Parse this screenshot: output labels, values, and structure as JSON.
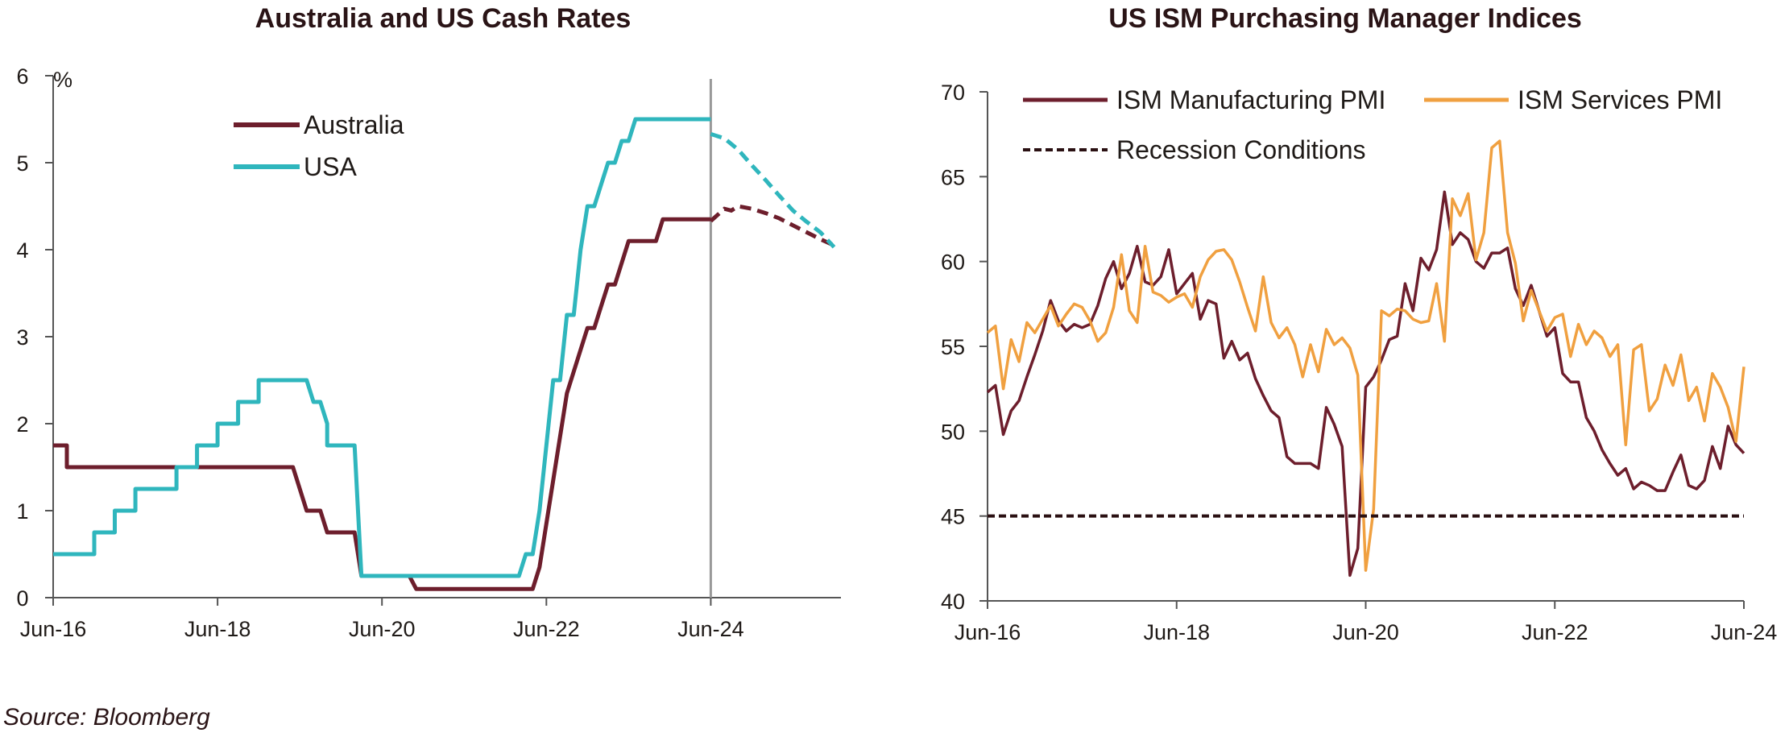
{
  "source": "Source: Bloomberg",
  "colors": {
    "maroon": "#6d1e2c",
    "teal": "#2fb6bd",
    "orange": "#f0a040",
    "dash": "#2a1012",
    "axis": "#555555"
  },
  "chart_data": [
    {
      "type": "line",
      "title": "Australia and US Cash Rates",
      "ylabel": "%",
      "xlabel": "",
      "ylim": [
        0,
        6
      ],
      "yticks": [
        "0",
        "1",
        "2",
        "3",
        "4",
        "5",
        "6"
      ],
      "x_tick_labels": [
        "Jun-16",
        "Jun-18",
        "Jun-20",
        "Jun-22",
        "Jun-24"
      ],
      "x_tick_dates": [
        "2016-06",
        "2018-06",
        "2020-06",
        "2022-06",
        "2024-06"
      ],
      "xlim": [
        "2016-06",
        "2026-01"
      ],
      "vertical_line_at": "2024-06",
      "series": [
        {
          "name": "Australia",
          "color": "#6d1e2c",
          "points": [
            [
              "2016-06",
              1.75
            ],
            [
              "2016-08",
              1.75
            ],
            [
              "2016-08",
              1.5
            ],
            [
              "2019-05",
              1.5
            ],
            [
              "2019-06",
              1.25
            ],
            [
              "2019-07",
              1.0
            ],
            [
              "2019-09",
              1.0
            ],
            [
              "2019-10",
              0.75
            ],
            [
              "2020-02",
              0.75
            ],
            [
              "2020-03",
              0.25
            ],
            [
              "2020-10",
              0.25
            ],
            [
              "2020-11",
              0.1
            ],
            [
              "2022-04",
              0.1
            ],
            [
              "2022-05",
              0.35
            ],
            [
              "2022-06",
              0.85
            ],
            [
              "2022-07",
              1.35
            ],
            [
              "2022-08",
              1.85
            ],
            [
              "2022-09",
              2.35
            ],
            [
              "2022-10",
              2.6
            ],
            [
              "2022-11",
              2.85
            ],
            [
              "2022-12",
              3.1
            ],
            [
              "2023-01",
              3.1
            ],
            [
              "2023-02",
              3.35
            ],
            [
              "2023-03",
              3.6
            ],
            [
              "2023-04",
              3.6
            ],
            [
              "2023-05",
              3.85
            ],
            [
              "2023-06",
              4.1
            ],
            [
              "2023-10",
              4.1
            ],
            [
              "2023-11",
              4.35
            ],
            [
              "2024-06",
              4.35
            ]
          ],
          "forecast": [
            [
              "2024-06",
              4.33
            ],
            [
              "2024-07",
              4.4
            ],
            [
              "2024-08",
              4.47
            ],
            [
              "2024-09",
              4.45
            ],
            [
              "2024-10",
              4.5
            ],
            [
              "2024-12",
              4.47
            ],
            [
              "2025-02",
              4.42
            ],
            [
              "2025-04",
              4.36
            ],
            [
              "2025-06",
              4.28
            ],
            [
              "2025-08",
              4.2
            ],
            [
              "2025-10",
              4.12
            ],
            [
              "2025-12",
              4.05
            ]
          ]
        },
        {
          "name": "USA",
          "color": "#2fb6bd",
          "points": [
            [
              "2016-06",
              0.5
            ],
            [
              "2016-12",
              0.5
            ],
            [
              "2016-12",
              0.75
            ],
            [
              "2017-03",
              0.75
            ],
            [
              "2017-03",
              1.0
            ],
            [
              "2017-06",
              1.0
            ],
            [
              "2017-06",
              1.25
            ],
            [
              "2017-12",
              1.25
            ],
            [
              "2017-12",
              1.5
            ],
            [
              "2018-03",
              1.5
            ],
            [
              "2018-03",
              1.75
            ],
            [
              "2018-06",
              1.75
            ],
            [
              "2018-06",
              2.0
            ],
            [
              "2018-09",
              2.0
            ],
            [
              "2018-09",
              2.25
            ],
            [
              "2018-12",
              2.25
            ],
            [
              "2018-12",
              2.5
            ],
            [
              "2019-07",
              2.5
            ],
            [
              "2019-08",
              2.25
            ],
            [
              "2019-09",
              2.25
            ],
            [
              "2019-10",
              2.0
            ],
            [
              "2019-10",
              1.75
            ],
            [
              "2020-02",
              1.75
            ],
            [
              "2020-03",
              0.25
            ],
            [
              "2022-02",
              0.25
            ],
            [
              "2022-03",
              0.5
            ],
            [
              "2022-04",
              0.5
            ],
            [
              "2022-05",
              1.0
            ],
            [
              "2022-06",
              1.75
            ],
            [
              "2022-07",
              2.5
            ],
            [
              "2022-08",
              2.5
            ],
            [
              "2022-09",
              3.25
            ],
            [
              "2022-10",
              3.25
            ],
            [
              "2022-11",
              4.0
            ],
            [
              "2022-12",
              4.5
            ],
            [
              "2023-01",
              4.5
            ],
            [
              "2023-02",
              4.75
            ],
            [
              "2023-03",
              5.0
            ],
            [
              "2023-04",
              5.0
            ],
            [
              "2023-05",
              5.25
            ],
            [
              "2023-06",
              5.25
            ],
            [
              "2023-07",
              5.5
            ],
            [
              "2024-06",
              5.5
            ]
          ],
          "forecast": [
            [
              "2024-06",
              5.33
            ],
            [
              "2024-08",
              5.28
            ],
            [
              "2024-10",
              5.15
            ],
            [
              "2024-12",
              4.97
            ],
            [
              "2025-02",
              4.8
            ],
            [
              "2025-04",
              4.62
            ],
            [
              "2025-06",
              4.45
            ],
            [
              "2025-08",
              4.32
            ],
            [
              "2025-10",
              4.2
            ],
            [
              "2025-12",
              4.03
            ]
          ]
        }
      ]
    },
    {
      "type": "line",
      "title": "US ISM Purchasing Manager Indices",
      "xlabel": "",
      "ylabel": "",
      "ylim": [
        40,
        70
      ],
      "yticks": [
        "40",
        "45",
        "50",
        "55",
        "60",
        "65",
        "70"
      ],
      "x_tick_labels": [
        "Jun-16",
        "Jun-18",
        "Jun-20",
        "Jun-22",
        "Jun-24"
      ],
      "x_tick_dates": [
        "2016-06",
        "2018-06",
        "2020-06",
        "2022-06",
        "2024-06"
      ],
      "xlim": [
        "2016-06",
        "2024-06"
      ],
      "series": [
        {
          "name": "ISM Manufacturing PMI",
          "color": "#6d1e2c",
          "start": "2016-06",
          "values": [
            52.3,
            52.7,
            49.8,
            51.2,
            51.8,
            53.2,
            54.5,
            55.9,
            57.7,
            56.5,
            55.9,
            56.3,
            56.1,
            56.3,
            57.4,
            59.0,
            60.0,
            58.4,
            59.3,
            60.9,
            58.8,
            58.6,
            59.1,
            60.7,
            58.1,
            58.7,
            59.3,
            56.6,
            57.7,
            57.5,
            54.3,
            55.3,
            54.2,
            54.6,
            53.1,
            52.1,
            51.2,
            50.8,
            48.5,
            48.1,
            48.1,
            48.1,
            47.8,
            51.4,
            50.4,
            49.1,
            41.5,
            43.1,
            52.6,
            53.2,
            54.2,
            55.4,
            55.6,
            58.7,
            57.1,
            60.2,
            59.5,
            60.7,
            64.1,
            61.0,
            61.7,
            61.3,
            60.0,
            59.6,
            60.5,
            60.5,
            60.8,
            58.4,
            57.4,
            58.6,
            57.1,
            55.6,
            56.1,
            53.4,
            52.9,
            52.9,
            50.8,
            50.0,
            48.9,
            48.1,
            47.4,
            47.8,
            46.6,
            47.0,
            46.8,
            46.5,
            46.5,
            47.6,
            48.6,
            46.8,
            46.6,
            47.1,
            49.1,
            47.8,
            50.3,
            49.2,
            48.7
          ]
        },
        {
          "name": "ISM Services PMI",
          "color": "#f0a040",
          "start": "2016-06",
          "values": [
            55.8,
            56.2,
            52.5,
            55.4,
            54.1,
            56.4,
            55.8,
            56.6,
            57.4,
            56.2,
            56.9,
            57.5,
            57.3,
            56.5,
            55.3,
            55.8,
            57.3,
            60.4,
            57.1,
            56.4,
            60.9,
            58.2,
            58.0,
            57.6,
            57.9,
            58.1,
            57.3,
            59.1,
            60.1,
            60.6,
            60.7,
            60.1,
            58.8,
            57.3,
            55.9,
            59.1,
            56.4,
            55.5,
            56.1,
            55.1,
            53.2,
            55.1,
            53.5,
            56.0,
            55.1,
            55.5,
            54.9,
            53.3,
            41.8,
            45.4,
            57.1,
            56.8,
            57.2,
            57.1,
            56.6,
            56.4,
            56.5,
            58.7,
            55.3,
            63.7,
            62.7,
            64.0,
            60.1,
            61.7,
            66.7,
            67.1,
            61.7,
            59.9,
            56.5,
            58.3,
            57.1,
            55.9,
            56.7,
            56.9,
            54.4,
            56.3,
            55.1,
            55.9,
            55.5,
            54.4,
            55.1,
            49.2,
            54.8,
            55.1,
            51.2,
            51.9,
            53.9,
            52.7,
            54.5,
            51.8,
            52.6,
            50.6,
            53.4,
            52.6,
            51.4,
            49.4,
            53.8
          ]
        },
        {
          "name": "Recession Conditions",
          "color": "#2a1012",
          "dashed": true,
          "constant": 45
        }
      ]
    }
  ]
}
